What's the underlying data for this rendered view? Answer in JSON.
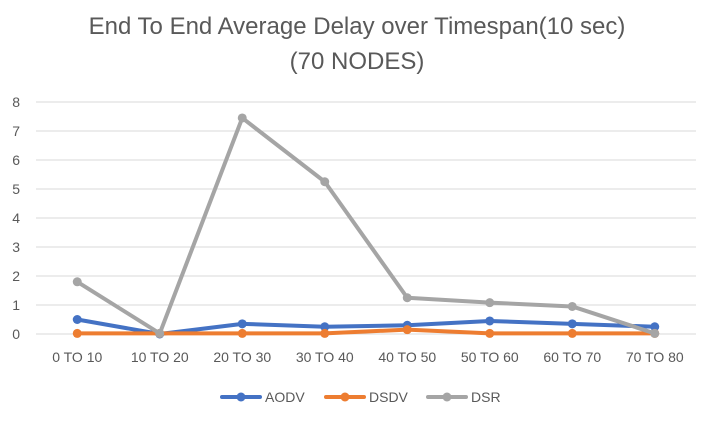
{
  "chart_data": {
    "type": "line",
    "title_line1": "End To End Average Delay over Timespan(10 sec)",
    "title_line2": "(70 NODES)",
    "categories": [
      "0 TO 10",
      "10 TO 20",
      "20 TO 30",
      "30 TO 40",
      "40 TO 50",
      "50 TO 60",
      "60 TO 70",
      "70 TO 80"
    ],
    "ylim": [
      0,
      8
    ],
    "yticks": [
      0,
      1,
      2,
      3,
      4,
      5,
      6,
      7,
      8
    ],
    "grid": true,
    "legend_position": "bottom",
    "series": [
      {
        "name": "AODV",
        "color": "#4472C4",
        "values": [
          0.5,
          0.0,
          0.35,
          0.25,
          0.3,
          0.45,
          0.35,
          0.25
        ]
      },
      {
        "name": "DSDV",
        "color": "#ED7D31",
        "values": [
          0.02,
          0.02,
          0.02,
          0.02,
          0.15,
          0.02,
          0.02,
          0.02
        ]
      },
      {
        "name": "DSR",
        "color": "#A5A5A5",
        "values": [
          1.8,
          0.02,
          7.45,
          5.25,
          1.25,
          1.08,
          0.95,
          0.02
        ]
      }
    ]
  }
}
